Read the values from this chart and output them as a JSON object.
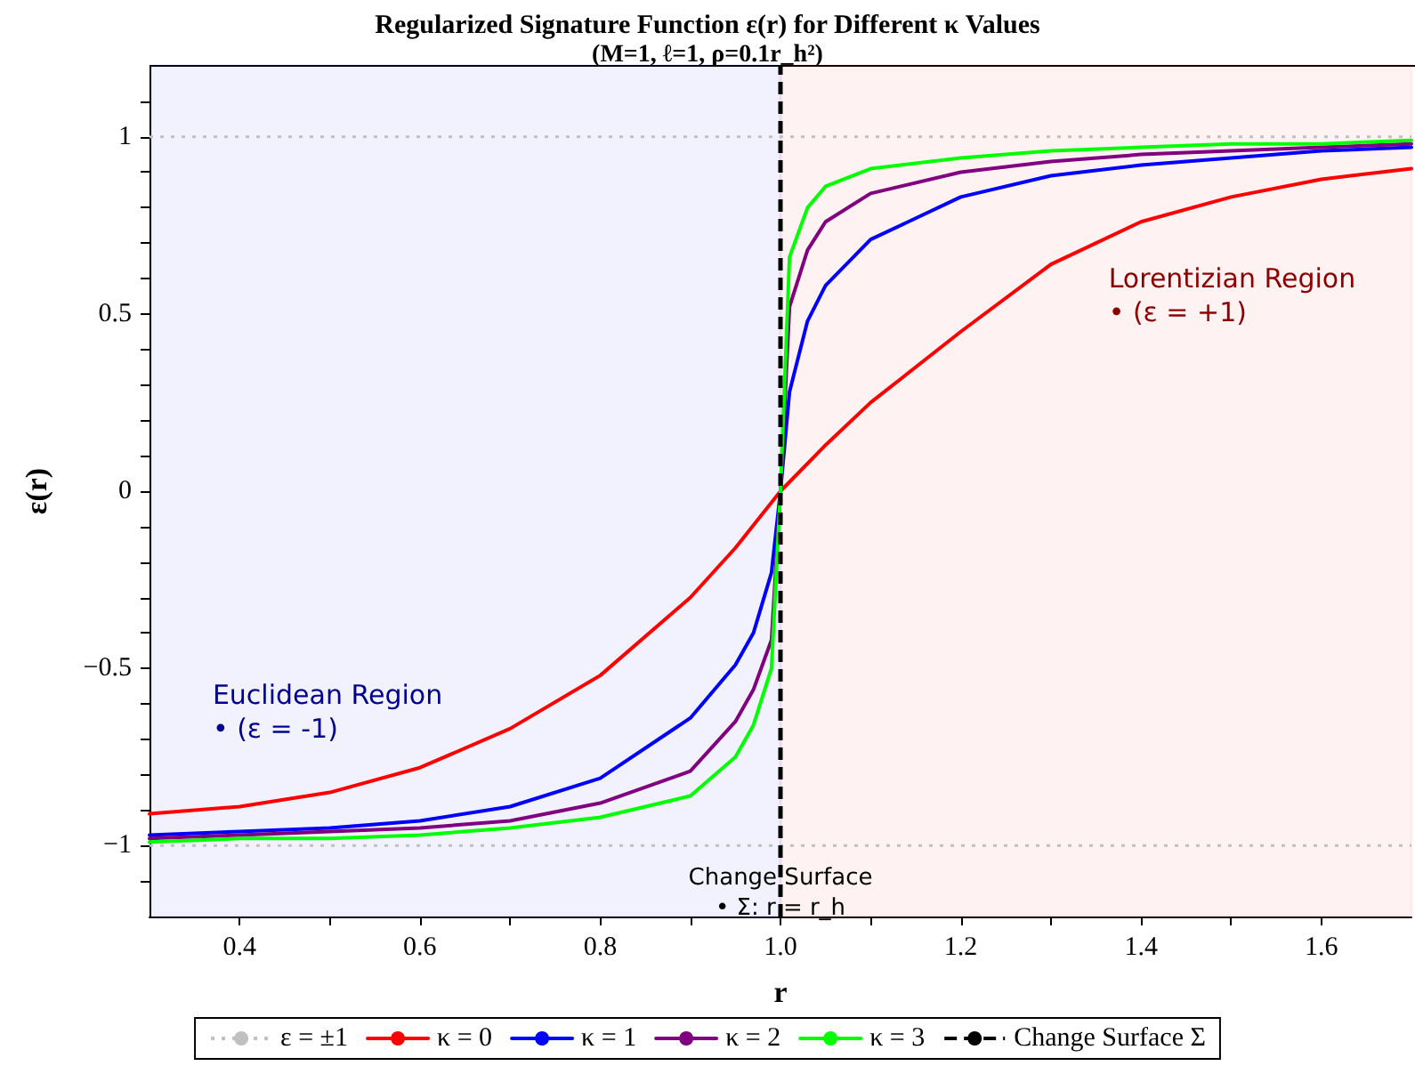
{
  "chart_data": {
    "type": "line",
    "title": "Regularized Signature Function ε(r) for Different κ Values",
    "subtitle": "(M=1, ℓ=1, ρ=0.1r_h²)",
    "xlabel": "r",
    "ylabel": "ε(r)",
    "x": [
      0.3,
      0.4,
      0.5,
      0.6,
      0.7,
      0.8,
      0.9,
      0.95,
      0.97,
      0.99,
      1.0,
      1.01,
      1.03,
      1.05,
      1.1,
      1.2,
      1.3,
      1.4,
      1.5,
      1.6,
      1.7
    ],
    "series": [
      {
        "name": "κ = 0",
        "color": "#ff0000",
        "x": [
          0.3,
          0.4,
          0.5,
          0.6,
          0.7,
          0.8,
          0.9,
          0.95,
          1.0,
          1.05,
          1.1,
          1.2,
          1.3,
          1.4,
          1.5,
          1.6,
          1.7
        ],
        "values": [
          -0.91,
          -0.89,
          -0.85,
          -0.78,
          -0.67,
          -0.52,
          -0.3,
          -0.16,
          0,
          0.13,
          0.25,
          0.45,
          0.64,
          0.76,
          0.83,
          0.88,
          0.91
        ]
      },
      {
        "name": "κ = 1",
        "color": "#0000ff",
        "values": [
          -0.97,
          -0.96,
          -0.95,
          -0.93,
          -0.89,
          -0.81,
          -0.64,
          -0.49,
          -0.4,
          -0.23,
          0,
          0.28,
          0.48,
          0.58,
          0.71,
          0.83,
          0.89,
          0.92,
          0.94,
          0.96,
          0.97
        ]
      },
      {
        "name": "κ = 2",
        "color": "#800080",
        "values": [
          -0.98,
          -0.97,
          -0.96,
          -0.95,
          -0.93,
          -0.88,
          -0.79,
          -0.65,
          -0.56,
          -0.42,
          0,
          0.52,
          0.68,
          0.76,
          0.84,
          0.9,
          0.93,
          0.95,
          0.96,
          0.97,
          0.98
        ]
      },
      {
        "name": "κ = 3",
        "color": "#00ff00",
        "values": [
          -0.99,
          -0.98,
          -0.98,
          -0.97,
          -0.95,
          -0.92,
          -0.86,
          -0.75,
          -0.66,
          -0.5,
          0,
          0.66,
          0.8,
          0.86,
          0.91,
          0.94,
          0.96,
          0.97,
          0.98,
          0.98,
          0.99
        ]
      }
    ],
    "xlim": [
      0.3,
      1.7
    ],
    "xticks": [
      {
        "value": 0.4,
        "label": "0.4"
      },
      {
        "value": 0.5,
        "label": null
      },
      {
        "value": 0.6,
        "label": "0.6"
      },
      {
        "value": 0.7,
        "label": null
      },
      {
        "value": 0.8,
        "label": "0.8"
      },
      {
        "value": 0.9,
        "label": null
      },
      {
        "value": 1,
        "label": "1.0"
      },
      {
        "value": 1.1,
        "label": null
      },
      {
        "value": 1.2,
        "label": "1.2"
      },
      {
        "value": 1.3,
        "label": null
      },
      {
        "value": 1.4,
        "label": "1.4"
      },
      {
        "value": 1.5,
        "label": null
      },
      {
        "value": 1.6,
        "label": "1.6"
      }
    ],
    "ylim": [
      -1.2,
      1.2
    ],
    "yticks": [
      {
        "value": -1.1,
        "label": null
      },
      {
        "value": -1,
        "label": "−1"
      },
      {
        "value": -0.9,
        "label": null
      },
      {
        "value": -0.8,
        "label": null
      },
      {
        "value": -0.7,
        "label": null
      },
      {
        "value": -0.6,
        "label": null
      },
      {
        "value": -0.5,
        "label": "−0.5"
      },
      {
        "value": -0.4,
        "label": null
      },
      {
        "value": -0.3,
        "label": null
      },
      {
        "value": -0.2,
        "label": null
      },
      {
        "value": -0.1,
        "label": null
      },
      0,
      {
        "value": 0.1,
        "label": null
      },
      {
        "value": 0.2,
        "label": null
      },
      {
        "value": 0.3,
        "label": null
      },
      {
        "value": 0.4,
        "label": null
      },
      0.5,
      {
        "value": 0.6,
        "label": null
      },
      {
        "value": 0.7,
        "label": null
      },
      {
        "value": 0.8,
        "label": null
      },
      {
        "value": 0.9,
        "label": null
      },
      1,
      {
        "value": 1.1,
        "label": null
      }
    ],
    "ref_lines": [
      {
        "axis": "y",
        "value": 1,
        "label": "ε = ±1",
        "color": "#c0c0c0",
        "line_style": "dotted"
      },
      {
        "axis": "y",
        "value": -1,
        "color": "#c0c0c0",
        "line_style": "dotted"
      },
      {
        "axis": "x",
        "value": 1,
        "label": "Change Surface Σ",
        "color": "#000000",
        "line_style": "dashed"
      }
    ],
    "bands": [
      {
        "axis": "x",
        "from": 0.3,
        "to": 1.0,
        "label": "Euclidean Region\n• (ε = -1)",
        "color": "#0000ff"
      },
      {
        "axis": "x",
        "from": 1.0,
        "to": 1.7,
        "label": "Lorentizian Region\n• (ε = +1)",
        "color": "#ff0000"
      }
    ],
    "annotations": [
      {
        "text": "Change Surface\n• Σ: r = r_h",
        "x": 1,
        "y": -1.05
      }
    ],
    "legend": "bottom",
    "grid": false,
    "marker": "none",
    "line_style": "solid"
  }
}
